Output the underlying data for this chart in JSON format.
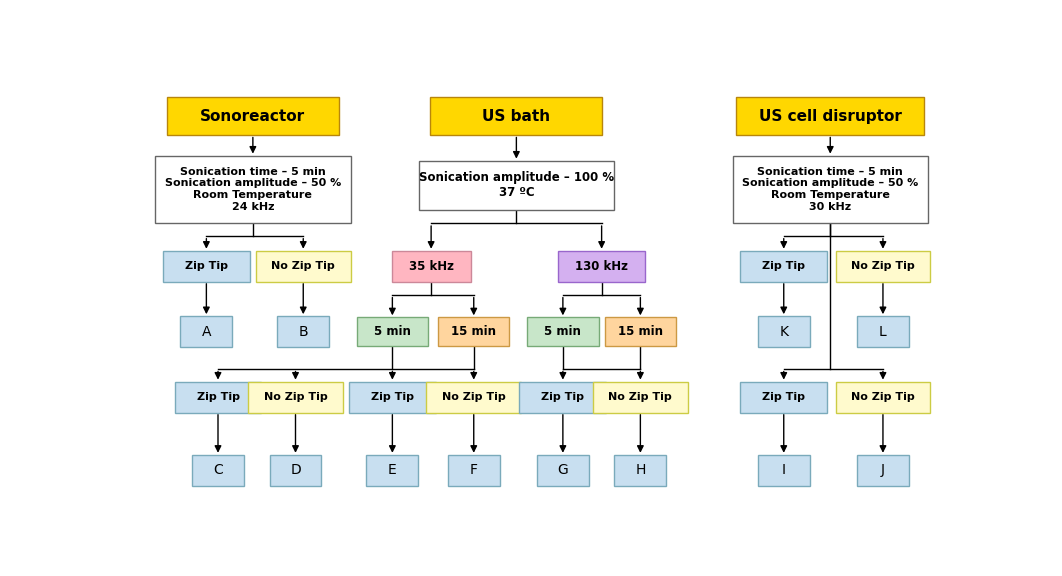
{
  "fig_width": 10.62,
  "fig_height": 5.76,
  "dpi": 100,
  "bg_color": "#ffffff",
  "gold_fc": "#FFD700",
  "gold_ec": "#B8860B",
  "white_fc": "#ffffff",
  "gray_ec": "#666666",
  "blue_fc": "#c8dff0",
  "blue_ec": "#7aaabb",
  "yellow_fc": "#FFFACD",
  "yellow_ec": "#cccc44",
  "pink_fc": "#FFB6C1",
  "pink_ec": "#cc8899",
  "purple_fc": "#d4b0f0",
  "purple_ec": "#9966cc",
  "green_fc": "#c8e6c9",
  "green_ec": "#77aa77",
  "orange_fc": "#FFD59E",
  "orange_ec": "#cc9944",
  "xlim": [
    0,
    10.62
  ],
  "ylim": [
    0,
    5.76
  ],
  "arrow_color": "#000000",
  "line_color": "#000000",
  "lw": 1.0
}
